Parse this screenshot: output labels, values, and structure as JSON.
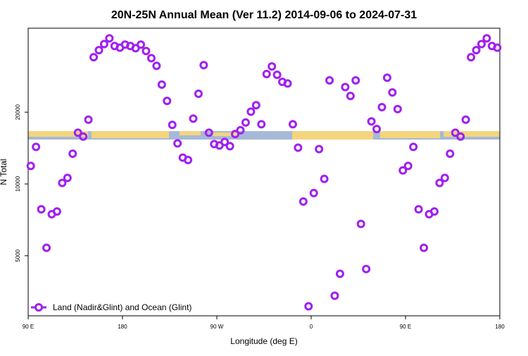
{
  "chart_data": {
    "type": "scatter",
    "title": "20N-25N Annual Mean (Ver 11.2)   2014-09-06 to 2024-07-31",
    "xlabel": "Longitude (deg E)",
    "ylabel": "N Total",
    "x": [
      92.5,
      97.5,
      102.5,
      107.5,
      112.5,
      117.5,
      122.5,
      127.5,
      132.5,
      137.5,
      142.5,
      147.5,
      152.5,
      157.5,
      162.5,
      167.5,
      172.5,
      177.5,
      182.5,
      187.5,
      192.5,
      197.5,
      202.5,
      207.5,
      212.5,
      217.5,
      222.5,
      227.5,
      232.5,
      237.5,
      242.5,
      247.5,
      252.5,
      257.5,
      262.5,
      267.5,
      272.5,
      277.5,
      282.5,
      287.5,
      292.5,
      297.5,
      302.5,
      307.5,
      312.5,
      317.5,
      322.5,
      327.5,
      332.5,
      337.5,
      342.5,
      347.5,
      352.5,
      357.5,
      362.5,
      367.5,
      372.5,
      377.5,
      382.5,
      387.5,
      392.5,
      397.5,
      402.5,
      407.5,
      412.5,
      417.5,
      422.5,
      427.5,
      432.5,
      437.5,
      442.5,
      447.5,
      452.5,
      457.5,
      462.5,
      467.5,
      472.5,
      477.5,
      482.5,
      487.5,
      492.5,
      497.5,
      502.5,
      507.5,
      512.5,
      517.5,
      522.5,
      527.5,
      532.5,
      537.5
    ],
    "series": [
      {
        "name": "Land (Nadir&Glint) and Ocean (Glint)",
        "color": "#a020f0",
        "values": [
          11900,
          14300,
          7830,
          5400,
          7470,
          7670,
          10100,
          10600,
          13400,
          16400,
          15800,
          18600,
          34000,
          36400,
          38600,
          40800,
          37900,
          37300,
          38400,
          37900,
          37100,
          38400,
          36100,
          33700,
          31300,
          26100,
          22300,
          17700,
          14800,
          12900,
          12600,
          18800,
          23900,
          31500,
          16400,
          14700,
          14500,
          15000,
          14400,
          16200,
          16800,
          18100,
          20100,
          21400,
          17800,
          28900,
          31100,
          28700,
          26800,
          26400,
          17800,
          14200,
          8440,
          3070,
          9160,
          14000,
          10500,
          27200,
          3400,
          4200,
          25500,
          23400,
          27200,
          6800,
          4400,
          18300,
          17000,
          21000,
          27900,
          24200,
          20600,
          11400,
          11900,
          14300,
          7830,
          5400,
          7470,
          7670,
          10100,
          10600,
          13400,
          16400,
          15800,
          18600,
          34000,
          36400,
          38600,
          40800,
          37900,
          37300
        ]
      }
    ],
    "xlim": [
      90,
      540
    ],
    "xticks": [
      {
        "value": 90,
        "label": "90 E"
      },
      {
        "value": 180,
        "label": "180"
      },
      {
        "value": 270,
        "label": "90 W"
      },
      {
        "value": 360,
        "label": "0"
      },
      {
        "value": 450,
        "label": "90 E"
      },
      {
        "value": 540,
        "label": "180"
      }
    ],
    "ylim": [
      2800,
      45000
    ],
    "yticks": [
      5000,
      10000,
      20000
    ],
    "log_y": true,
    "legend": "bottom-left"
  }
}
